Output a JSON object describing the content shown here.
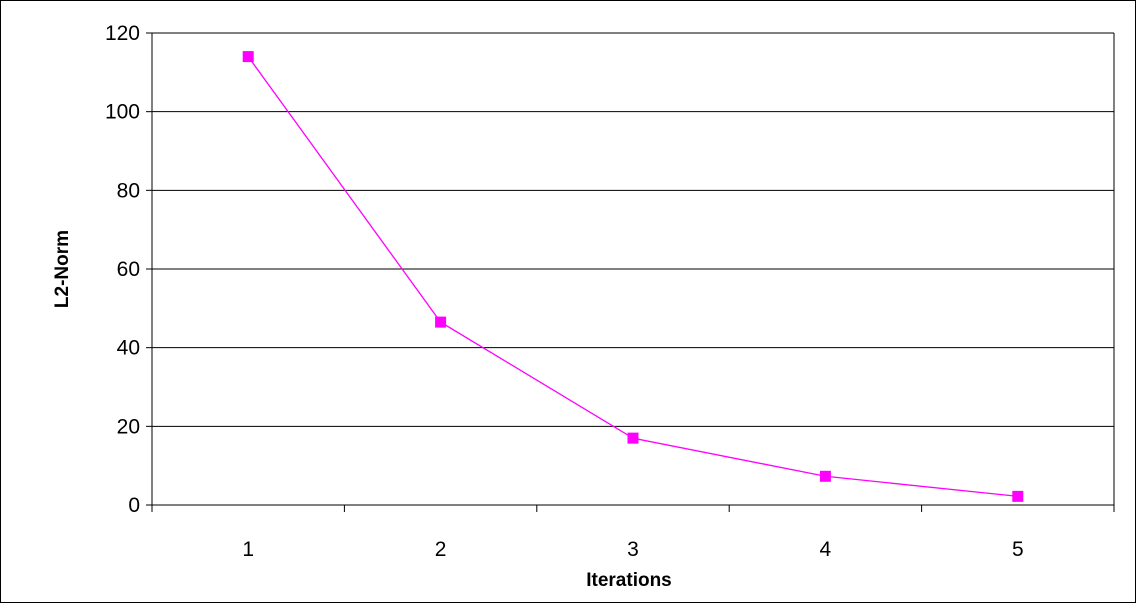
{
  "chart_data": {
    "type": "line",
    "title": "",
    "xlabel": "Iterations",
    "ylabel": "L2-Norm",
    "categories": [
      "1",
      "2",
      "3",
      "4",
      "5"
    ],
    "series": [
      {
        "values": [
          114,
          46.5,
          17,
          7.3,
          2.2
        ]
      }
    ],
    "ylim": [
      0,
      120
    ],
    "yticks": [
      0,
      20,
      40,
      60,
      80,
      100,
      120
    ],
    "grid": true,
    "legend": "none",
    "colors": {
      "series": "#ff00ff",
      "grid": "#000000",
      "axis": "#000000",
      "background": "#ffffff"
    }
  }
}
